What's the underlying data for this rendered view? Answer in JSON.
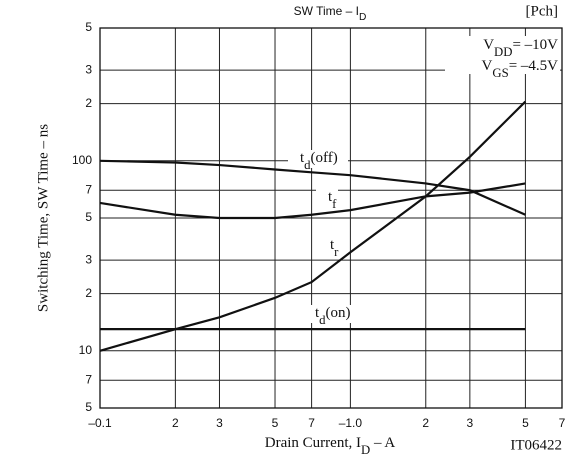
{
  "chart_data": {
    "type": "line",
    "title": [
      "SW Time  –  I",
      "D"
    ],
    "annotations": [
      "[Pch]",
      "IT06422"
    ],
    "conditions": [
      [
        "V",
        "DD",
        "= –10V"
      ],
      [
        "V",
        "GS",
        "= –4.5V"
      ]
    ],
    "x_label": [
      "Drain Current, I",
      "D",
      "  –  A"
    ],
    "y_label": "Switching Time, SW Time  –  ns",
    "x": [
      0.1,
      0.2,
      0.3,
      0.5,
      0.7,
      1,
      2,
      3,
      5
    ],
    "series": [
      {
        "name": [
          "t",
          "d",
          "(off)"
        ],
        "color": "#111111",
        "values": [
          100,
          98,
          95,
          90,
          87,
          84,
          76,
          70,
          52
        ]
      },
      {
        "name": [
          "t",
          "f",
          ""
        ],
        "color": "#111111",
        "values": [
          60,
          52,
          50,
          50,
          52,
          55,
          65,
          68,
          76
        ]
      },
      {
        "name": [
          "t",
          "r",
          ""
        ],
        "color": "#111111",
        "values": [
          10,
          13,
          15,
          19,
          23,
          33,
          65,
          105,
          205
        ]
      },
      {
        "name": [
          "t",
          "d",
          "(on)"
        ],
        "color": "#111111",
        "values": [
          13,
          13,
          13,
          13,
          13,
          13,
          13,
          13,
          13
        ]
      }
    ],
    "xlim": [
      0.1,
      7
    ],
    "ylim": [
      5,
      500
    ],
    "log_x": true,
    "log_y": true,
    "grid": true,
    "xticks": [
      {
        "value": 0.1,
        "label": "–0.1"
      },
      {
        "value": 0.2,
        "label": "2"
      },
      {
        "value": 0.3,
        "label": "3"
      },
      {
        "value": 0.5,
        "label": "5"
      },
      {
        "value": 0.7,
        "label": "7"
      },
      {
        "value": 1,
        "label": "–1.0"
      },
      2,
      3,
      5,
      7
    ],
    "yticks": [
      5,
      7,
      10,
      {
        "value": 20,
        "label": "2"
      },
      {
        "value": 30,
        "label": "3"
      },
      {
        "value": 50,
        "label": "5"
      },
      {
        "value": 70,
        "label": "7"
      },
      100,
      {
        "value": 200,
        "label": "2"
      },
      {
        "value": 300,
        "label": "3"
      },
      {
        "value": 500,
        "label": "5"
      }
    ]
  }
}
